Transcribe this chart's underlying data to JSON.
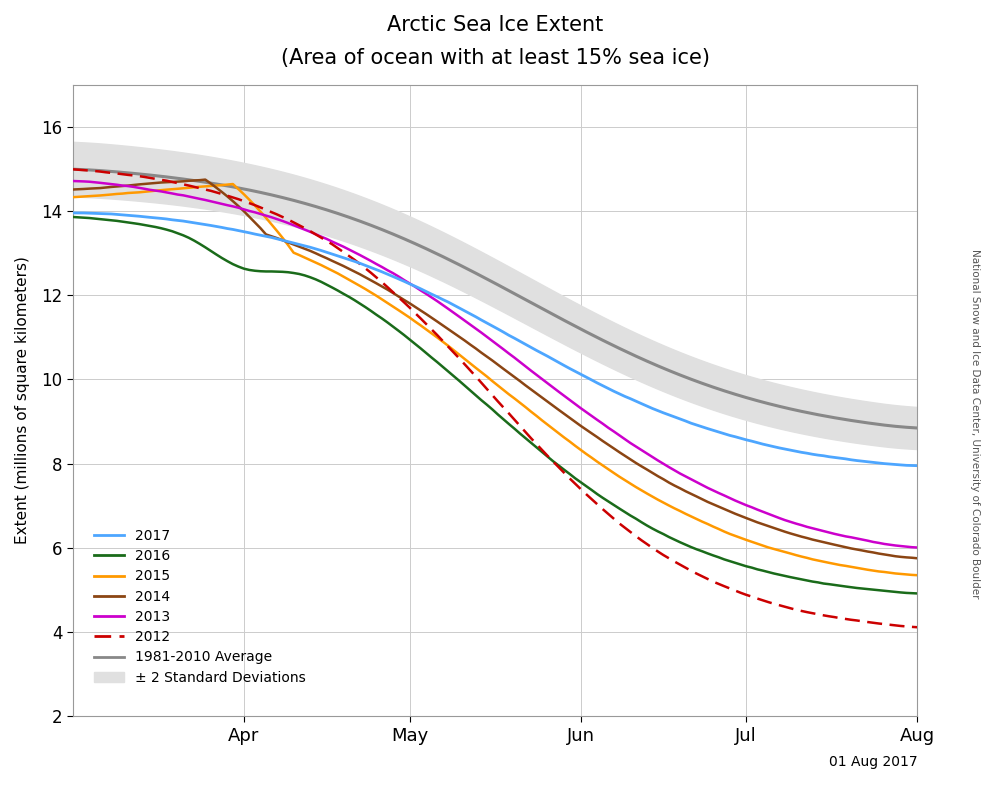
{
  "title_line1": "Arctic Sea Ice Extent",
  "title_line2": "(Area of ocean with at least 15% sea ice)",
  "ylabel": "Extent (millions of square kilometers)",
  "watermark": "National Snow and Ice Data Center, University of Colorado Boulder",
  "date_label": "01 Aug 2017",
  "ylim": [
    2,
    17
  ],
  "yticks": [
    2,
    4,
    6,
    8,
    10,
    12,
    14,
    16
  ],
  "colors": {
    "2017": "#4da6ff",
    "2016": "#1a6b1a",
    "2015": "#ff9900",
    "2014": "#8B4513",
    "2013": "#cc00cc",
    "2012_color": "#cc0000",
    "median": "#888888",
    "shading": "#e0e0e0"
  },
  "background_color": "#ffffff",
  "grid_color": "#cccccc",
  "month_ticks": [
    91,
    121,
    152,
    182,
    213
  ],
  "month_labels": [
    "Apr",
    "May",
    "Jun",
    "Jul",
    "Aug"
  ],
  "day_start": 60,
  "day_end": 213
}
